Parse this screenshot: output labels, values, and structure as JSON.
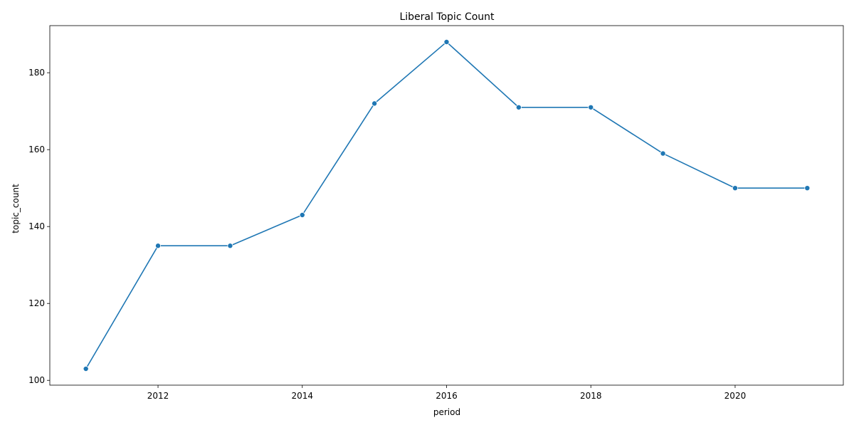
{
  "chart_data": {
    "type": "line",
    "title": "Liberal Topic Count",
    "xlabel": "period",
    "ylabel": "topic_count",
    "x": [
      2011,
      2012,
      2013,
      2014,
      2015,
      2016,
      2017,
      2018,
      2019,
      2020,
      2021
    ],
    "series": [
      {
        "values": [
          103,
          135,
          135,
          143,
          172,
          188,
          171,
          171,
          159,
          150,
          150
        ],
        "color": "#1f77b4",
        "marker": "circle"
      }
    ],
    "xticks": [
      2012,
      2014,
      2016,
      2018,
      2020
    ],
    "yticks": [
      100,
      120,
      140,
      160,
      180
    ],
    "xlim": [
      2010.5,
      2021.5
    ],
    "ylim": [
      98.75,
      192.25
    ],
    "grid": false,
    "legend": "none"
  }
}
